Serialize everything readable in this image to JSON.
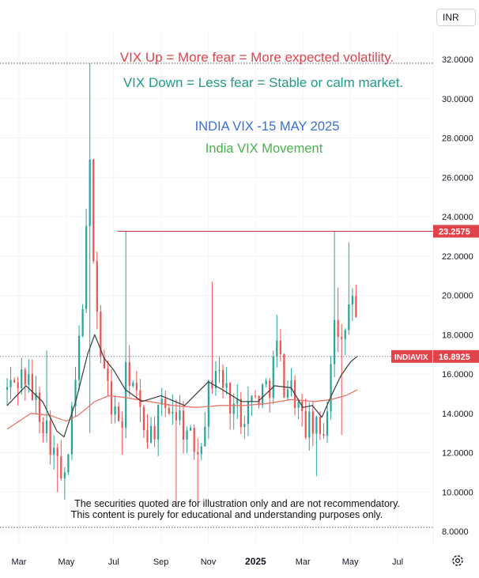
{
  "currency": "INR",
  "annotations": {
    "line1": "VIX Up = More fear = More expected volatility.",
    "line2": "VIX Down = Less fear = Stable or calm market.",
    "line3": "INDIA VIX -15 MAY 2025",
    "line4": "India VIX Movement",
    "disclaimer1": "The securities quoted are for illustration only and are not recommendatory.",
    "disclaimer2": "This content is purely for educational and understanding purposes only."
  },
  "colors": {
    "up": "#26a69a",
    "down": "#ef5350",
    "red_text": "#e0434a",
    "green_text": "#1e9a86",
    "blue_text": "#3a6fd8",
    "green_text2": "#4caf50",
    "resistance": "#c9303f",
    "short_ma": "#3a3a3a",
    "long_ma": "#e8756b",
    "badge": "#e0434a"
  },
  "chart_data": {
    "type": "candlestick",
    "y_range": [
      7.0,
      33.5
    ],
    "y_ticks": [
      "32.0000",
      "30.0000",
      "28.0000",
      "26.0000",
      "24.0000",
      "22.0000",
      "20.0000",
      "18.0000",
      "16.0000",
      "14.0000",
      "12.0000",
      "10.0000",
      "8.0000"
    ],
    "x_ticks": [
      "Mar",
      "May",
      "Jul",
      "Sep",
      "Nov",
      "2025",
      "Mar",
      "May",
      "Jul"
    ],
    "x_tick_months": [
      0,
      2,
      4,
      6,
      8,
      10,
      12,
      14,
      16
    ],
    "x_range_months": [
      -0.5,
      16.8
    ],
    "resistance_level": 23.2575,
    "resistance_label": "23.2575",
    "last_value": 16.8925,
    "last_label": "16.8925",
    "symbol": "INDIAVIX",
    "dotted_levels": [
      31.8,
      16.8925,
      8.2
    ],
    "series": [
      {
        "name": "short MA",
        "points": [
          [
            -0.5,
            14.4
          ],
          [
            0.3,
            15.4
          ],
          [
            1.0,
            14.6
          ],
          [
            1.6,
            13.1
          ],
          [
            1.9,
            12.8
          ],
          [
            2.4,
            14.6
          ],
          [
            2.9,
            17.0
          ],
          [
            3.2,
            18.0
          ],
          [
            3.6,
            16.8
          ],
          [
            4.0,
            16.2
          ],
          [
            4.5,
            15.2
          ],
          [
            5.2,
            14.6
          ],
          [
            6.0,
            14.9
          ],
          [
            7.0,
            14.4
          ],
          [
            8.0,
            15.6
          ],
          [
            8.6,
            15.2
          ],
          [
            9.4,
            14.6
          ],
          [
            10.1,
            14.6
          ],
          [
            10.8,
            15.4
          ],
          [
            11.5,
            15.3
          ],
          [
            12.0,
            14.3
          ],
          [
            12.4,
            14.4
          ],
          [
            12.8,
            13.8
          ],
          [
            13.2,
            14.9
          ],
          [
            13.6,
            15.9
          ],
          [
            14.0,
            16.6
          ],
          [
            14.3,
            16.9
          ]
        ]
      },
      {
        "name": "long MA",
        "points": [
          [
            -0.5,
            13.2
          ],
          [
            0.5,
            14.0
          ],
          [
            1.3,
            13.9
          ],
          [
            2.0,
            13.6
          ],
          [
            2.5,
            13.9
          ],
          [
            3.2,
            14.6
          ],
          [
            3.8,
            14.9
          ],
          [
            4.5,
            14.8
          ],
          [
            5.5,
            14.6
          ],
          [
            6.5,
            14.4
          ],
          [
            7.5,
            14.3
          ],
          [
            8.5,
            14.4
          ],
          [
            9.5,
            14.4
          ],
          [
            10.5,
            14.5
          ],
          [
            11.5,
            14.7
          ],
          [
            12.5,
            14.6
          ],
          [
            13.2,
            14.7
          ],
          [
            13.8,
            14.9
          ],
          [
            14.3,
            15.2
          ]
        ]
      }
    ],
    "anchors": [
      [
        -0.5,
        15.2
      ],
      [
        0.2,
        16.0
      ],
      [
        0.8,
        14.4
      ],
      [
        1.3,
        12.8
      ],
      [
        1.7,
        11.0
      ],
      [
        1.95,
        10.4
      ],
      [
        2.3,
        14.4
      ],
      [
        2.6,
        18.2
      ],
      [
        2.85,
        23.0
      ],
      [
        3.0,
        26.5
      ],
      [
        3.2,
        21.0
      ],
      [
        3.45,
        17.0
      ],
      [
        3.7,
        15.5
      ],
      [
        4.0,
        14.0
      ],
      [
        4.4,
        13.5
      ],
      [
        4.55,
        16.5
      ],
      [
        4.8,
        15.5
      ],
      [
        5.2,
        13.5
      ],
      [
        5.6,
        13.0
      ],
      [
        6.0,
        14.0
      ],
      [
        6.4,
        14.5
      ],
      [
        6.8,
        13.8
      ],
      [
        7.2,
        12.6
      ],
      [
        7.6,
        12.3
      ],
      [
        8.0,
        15.0
      ],
      [
        8.3,
        16.4
      ],
      [
        8.6,
        15.5
      ],
      [
        9.0,
        14.5
      ],
      [
        9.4,
        14.0
      ],
      [
        9.8,
        14.6
      ],
      [
        10.2,
        15.0
      ],
      [
        10.6,
        15.6
      ],
      [
        10.9,
        17.4
      ],
      [
        11.2,
        15.6
      ],
      [
        11.6,
        15.2
      ],
      [
        12.0,
        13.4
      ],
      [
        12.4,
        13.3
      ],
      [
        12.8,
        12.8
      ],
      [
        13.1,
        15.0
      ],
      [
        13.3,
        19.8
      ],
      [
        13.55,
        16.5
      ],
      [
        13.8,
        18.5
      ],
      [
        14.05,
        20.0
      ],
      [
        14.2,
        19.0
      ],
      [
        14.35,
        16.9
      ]
    ],
    "notable_highs": [
      [
        1.1,
        17.2
      ],
      [
        3.0,
        31.8
      ],
      [
        3.05,
        27.0
      ],
      [
        4.5,
        23.2575
      ],
      [
        6.9,
        13.7
      ],
      [
        8.1,
        20.7
      ],
      [
        10.9,
        19.0
      ],
      [
        13.3,
        23.2575
      ],
      [
        13.55,
        20.4
      ],
      [
        14.0,
        22.7
      ]
    ],
    "notable_lows": [
      [
        1.6,
        10.0
      ],
      [
        1.9,
        9.6
      ],
      [
        3.0,
        13.0
      ],
      [
        4.4,
        11.9
      ],
      [
        6.7,
        9.3
      ],
      [
        7.6,
        9.5
      ],
      [
        12.6,
        10.8
      ],
      [
        13.6,
        12.9
      ]
    ]
  }
}
